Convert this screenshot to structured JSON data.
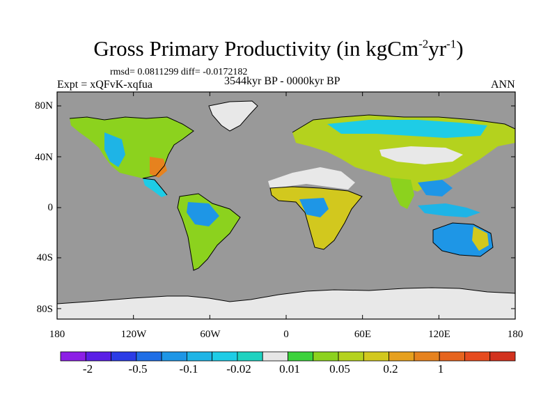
{
  "title": {
    "text": "Gross Primary Productivity (in kgCm",
    "sup1": "-2",
    "mid": "yr",
    "sup2": "-1",
    "end": ")"
  },
  "stats": "rmsd= 0.0811299 diff= -0.0172182",
  "expt": "Expt = xQFvK-xqfua",
  "period": "3544kyr BP - 0000kyr BP",
  "season": "ANN",
  "y_axis": {
    "labels": [
      "80N",
      "40N",
      "0",
      "40S",
      "80S"
    ]
  },
  "x_axis": {
    "labels": [
      "180",
      "120W",
      "60W",
      "0",
      "60E",
      "120E",
      "180"
    ]
  },
  "colorbar": {
    "labels": [
      "-2",
      "-0.5",
      "-0.1",
      "-0.02",
      "0.01",
      "0.05",
      "0.2",
      "1"
    ],
    "colors": [
      "#8c1ee6",
      "#5a1ee6",
      "#2b3ce6",
      "#1f6ee6",
      "#1e96e6",
      "#1eb4e6",
      "#1ecce6",
      "#1ed2c0",
      "#e6e6e6",
      "#3cd23c",
      "#8cd21e",
      "#b4d21e",
      "#d2c81e",
      "#e6a01e",
      "#e6821e",
      "#e6641e",
      "#e64b1e",
      "#d2321e"
    ]
  },
  "colors": {
    "ocean": "#999999",
    "ice": "#e8e8e8",
    "coast": "#000000"
  }
}
